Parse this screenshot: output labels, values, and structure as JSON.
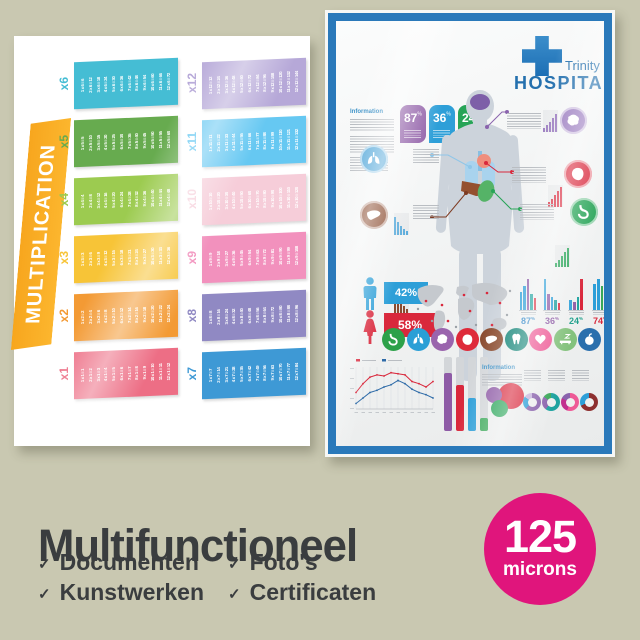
{
  "scene": {
    "background": "#c9c8b1"
  },
  "multiplication_poster": {
    "title": "MULTIPLICATION",
    "banner_color": "#f7a61e",
    "tables": [
      {
        "label": "x6",
        "color": "#45bdd4",
        "entries": [
          "1 x 6 = 6",
          "2 x 6 = 12",
          "3 x 6 = 18",
          "4 x 6 = 24",
          "5 x 6 = 30",
          "6 x 6 = 36",
          "7 x 6 = 42",
          "8 x 6 = 48",
          "9 x 6 = 54",
          "10 x 6 = 60",
          "11 x 6 = 66",
          "12 x 6 = 72"
        ]
      },
      {
        "label": "x5",
        "color": "#67ab4f",
        "entries": [
          "1 x 5 = 5",
          "2 x 5 = 10",
          "3 x 5 = 15",
          "4 x 5 = 20",
          "5 x 5 = 25",
          "6 x 5 = 30",
          "7 x 5 = 35",
          "8 x 5 = 40",
          "9 x 5 = 45",
          "10 x 5 = 50",
          "11 x 5 = 55",
          "12 x 5 = 60"
        ]
      },
      {
        "label": "x4",
        "color": "#9ccb50",
        "entries": [
          "1 x 4 = 4",
          "2 x 4 = 8",
          "3 x 4 = 12",
          "4 x 4 = 16",
          "5 x 4 = 20",
          "6 x 4 = 24",
          "7 x 4 = 28",
          "8 x 4 = 32",
          "9 x 4 = 36",
          "10 x 4 = 40",
          "11 x 4 = 44",
          "12 x 4 = 48"
        ]
      },
      {
        "label": "x3",
        "color": "#f7c437",
        "entries": [
          "1 x 3 = 3",
          "2 x 3 = 6",
          "3 x 3 = 9",
          "4 x 3 = 12",
          "5 x 3 = 15",
          "6 x 3 = 18",
          "7 x 3 = 21",
          "8 x 3 = 24",
          "9 x 3 = 27",
          "10 x 3 = 30",
          "11 x 3 = 33",
          "12 x 3 = 36"
        ]
      },
      {
        "label": "x2",
        "color": "#f39a34",
        "entries": [
          "1 x 2 = 2",
          "2 x 2 = 4",
          "3 x 2 = 6",
          "4 x 2 = 8",
          "5 x 2 = 10",
          "6 x 2 = 12",
          "7 x 2 = 14",
          "8 x 2 = 16",
          "9 x 2 = 18",
          "10 x 2 = 20",
          "11 x 2 = 22",
          "12 x 2 = 24"
        ]
      },
      {
        "label": "x1",
        "color": "#ed6e85",
        "entries": [
          "1 x 1 = 1",
          "2 x 1 = 2",
          "3 x 1 = 3",
          "4 x 1 = 4",
          "5 x 1 = 5",
          "6 x 1 = 6",
          "7 x 1 = 7",
          "8 x 1 = 8",
          "9 x 1 = 9",
          "10 x 1 = 10",
          "11 x 1 = 11",
          "12 x 1 = 12"
        ]
      },
      {
        "label": "x12",
        "color": "#b6a8d8",
        "entries": [
          "1 x 12 = 12",
          "2 x 12 = 24",
          "3 x 12 = 36",
          "4 x 12 = 48",
          "5 x 12 = 60",
          "6 x 12 = 72",
          "7 x 12 = 84",
          "8 x 12 = 96",
          "9 x 12 = 108",
          "10 x 12 = 120",
          "11 x 12 = 132",
          "12 x 12 = 144"
        ]
      },
      {
        "label": "x11",
        "color": "#66c8f2",
        "entries": [
          "1 x 11 = 11",
          "2 x 11 = 22",
          "3 x 11 = 33",
          "4 x 11 = 44",
          "5 x 11 = 55",
          "6 x 11 = 66",
          "7 x 11 = 77",
          "8 x 11 = 88",
          "9 x 11 = 99",
          "10 x 11 = 110",
          "11 x 11 = 121",
          "12 x 11 = 132"
        ]
      },
      {
        "label": "x10",
        "color": "#f6cdd9",
        "entries": [
          "1 x 10 = 10",
          "2 x 10 = 20",
          "3 x 10 = 30",
          "4 x 10 = 40",
          "5 x 10 = 50",
          "6 x 10 = 60",
          "7 x 10 = 70",
          "8 x 10 = 80",
          "9 x 10 = 90",
          "10 x 10 = 100",
          "11 x 10 = 110",
          "12 x 10 = 120"
        ]
      },
      {
        "label": "x9",
        "color": "#f291bd",
        "entries": [
          "1 x 9 = 9",
          "2 x 9 = 18",
          "3 x 9 = 27",
          "4 x 9 = 36",
          "5 x 9 = 45",
          "6 x 9 = 54",
          "7 x 9 = 63",
          "8 x 9 = 72",
          "9 x 9 = 81",
          "10 x 9 = 90",
          "11 x 9 = 99",
          "12 x 9 = 108"
        ]
      },
      {
        "label": "x8",
        "color": "#9089c3",
        "entries": [
          "1 x 8 = 8",
          "2 x 8 = 16",
          "3 x 8 = 24",
          "4 x 8 = 32",
          "5 x 8 = 40",
          "6 x 8 = 48",
          "7 x 8 = 56",
          "8 x 8 = 64",
          "9 x 8 = 72",
          "10 x 8 = 80",
          "11 x 8 = 88",
          "12 x 8 = 96"
        ]
      },
      {
        "label": "x7",
        "color": "#3e99d5",
        "entries": [
          "1 x 7 = 7",
          "2 x 7 = 14",
          "3 x 7 = 21",
          "4 x 7 = 28",
          "5 x 7 = 35",
          "6 x 7 = 42",
          "7 x 7 = 49",
          "8 x 7 = 56",
          "9 x 7 = 63",
          "10 x 7 = 70",
          "11 x 7 = 77",
          "12 x 7 = 84"
        ]
      }
    ]
  },
  "hospital_poster": {
    "frame_color": "#2a79ba",
    "logo": {
      "line1": "Trinity",
      "line2": "HOSPITAL",
      "cross_color": "#1d6fb5",
      "text_color": "#2470ae"
    },
    "information_label": "Information",
    "information_label_2": "Information",
    "stat_badges": [
      {
        "value": "87",
        "unit": "%",
        "color": "#8e5ba6"
      },
      {
        "value": "36",
        "unit": "%",
        "color": "#2d9fd8"
      },
      {
        "value": "24",
        "unit": "%",
        "color": "#27a457"
      }
    ],
    "organ_callouts": [
      {
        "name": "brain",
        "circle_color": "#9b7cc0",
        "line_color": "#8a63ad"
      },
      {
        "name": "heart",
        "circle_color": "#d9283c",
        "line_color": "#d9283c"
      },
      {
        "name": "stomach",
        "circle_color": "#27a457",
        "line_color": "#27a457"
      },
      {
        "name": "lungs",
        "circle_color": "#5aabdb",
        "line_color": "#8fc6e8"
      },
      {
        "name": "liver",
        "circle_color": "#8a4b2f",
        "line_color": "#7e3b22"
      }
    ],
    "gender_stats": [
      {
        "value": "42%",
        "color": "#2d9fd8"
      },
      {
        "value": "58%",
        "color": "#d9283c"
      }
    ],
    "cluster_stats": [
      {
        "value": "87",
        "unit": "%",
        "color": "#2e86c8",
        "bars": [
          [
            "#2d9fd8",
            18
          ],
          [
            "#2d9fd8",
            24
          ],
          [
            "#8e5ba6",
            31
          ],
          [
            "#1fa3a0",
            16
          ],
          [
            "#d9283c",
            12
          ]
        ]
      },
      {
        "value": "36",
        "unit": "%",
        "color": "#8e5ba6",
        "bars": [
          [
            "#2d9fd8",
            31
          ],
          [
            "#8e5ba6",
            16
          ],
          [
            "#2d9fd8",
            13
          ],
          [
            "#1fa3a0",
            10
          ],
          [
            "#d9283c",
            7
          ]
        ]
      },
      {
        "value": "24",
        "unit": "%",
        "color": "#1fa08c",
        "bars": [
          [
            "#2d9fd8",
            10
          ],
          [
            "#8e5ba6",
            8
          ],
          [
            "#1fa3a0",
            13
          ],
          [
            "#d9283c",
            31
          ]
        ]
      },
      {
        "value": "74",
        "unit": "%",
        "color": "#d9283c",
        "bars": [
          [
            "#2d9fd8",
            26
          ],
          [
            "#2d9fd8",
            31
          ],
          [
            "#3aa858",
            24
          ],
          [
            "#d9283c",
            16
          ]
        ]
      }
    ],
    "organ_icons": [
      {
        "icon": "stomach-icon",
        "color": "#2da14a"
      },
      {
        "icon": "lungs-icon",
        "color": "#2b9fd6"
      },
      {
        "icon": "brain-icon",
        "color": "#9a64ad"
      },
      {
        "icon": "heart-organ-icon",
        "color": "#de2a3a"
      },
      {
        "icon": "liver-icon",
        "color": "#8a4b2f"
      },
      {
        "icon": "tooth-icon",
        "color": "#0f8376"
      },
      {
        "icon": "heart-icon",
        "color": "#ee5a96"
      },
      {
        "icon": "bed-icon",
        "color": "#84c27d"
      },
      {
        "icon": "apple-icon",
        "color": "#2a6fad"
      }
    ],
    "progress_bars": [
      {
        "color": "#8e5ba6",
        "pct": 78
      },
      {
        "color": "#d9283c",
        "pct": 62
      },
      {
        "color": "#2d9fd8",
        "pct": 45
      },
      {
        "color": "#3aa858",
        "pct": 18
      }
    ],
    "bubbles": [
      {
        "color": "#d9283c",
        "d": 26,
        "x": 14,
        "y": 2
      },
      {
        "color": "#8e5ba6",
        "d": 16,
        "x": 2,
        "y": 6
      },
      {
        "color": "#27a457",
        "d": 17,
        "x": 7,
        "y": 19
      }
    ],
    "donuts": [
      {
        "segments": [
          [
            "#8a63ad",
            62
          ],
          [
            "#2d9fd8",
            23
          ],
          [
            "#c6b3dd",
            15
          ]
        ]
      },
      {
        "segments": [
          [
            "#1fa3a0",
            60
          ],
          [
            "#8a63ad",
            25
          ],
          [
            "#3aa858",
            15
          ]
        ]
      },
      {
        "segments": [
          [
            "#ee5a96",
            55
          ],
          [
            "#c2308e",
            27
          ],
          [
            "#8a63ad",
            18
          ]
        ]
      },
      {
        "segments": [
          [
            "#8d2f2f",
            68
          ],
          [
            "#2d9fd8",
            32
          ]
        ]
      }
    ],
    "line_chart": {
      "series": [
        {
          "color": "#d9283c",
          "values": [
            30,
            46,
            58,
            62,
            60,
            66,
            64,
            62,
            50,
            46,
            40,
            50
          ]
        },
        {
          "color": "#2e6ba8",
          "values": [
            10,
            20,
            30,
            34,
            40,
            44,
            52,
            46,
            36,
            30,
            26,
            20
          ]
        }
      ]
    }
  },
  "footer": {
    "title": "Multifunctioneel",
    "check_glyph": "✓",
    "items": [
      "Documenten",
      "Kunstwerken",
      "Foto's",
      "Certificaten"
    ],
    "text_color": "#3a3d3f",
    "badge": {
      "value": "125",
      "unit": "microns",
      "color": "#e0157c"
    }
  }
}
